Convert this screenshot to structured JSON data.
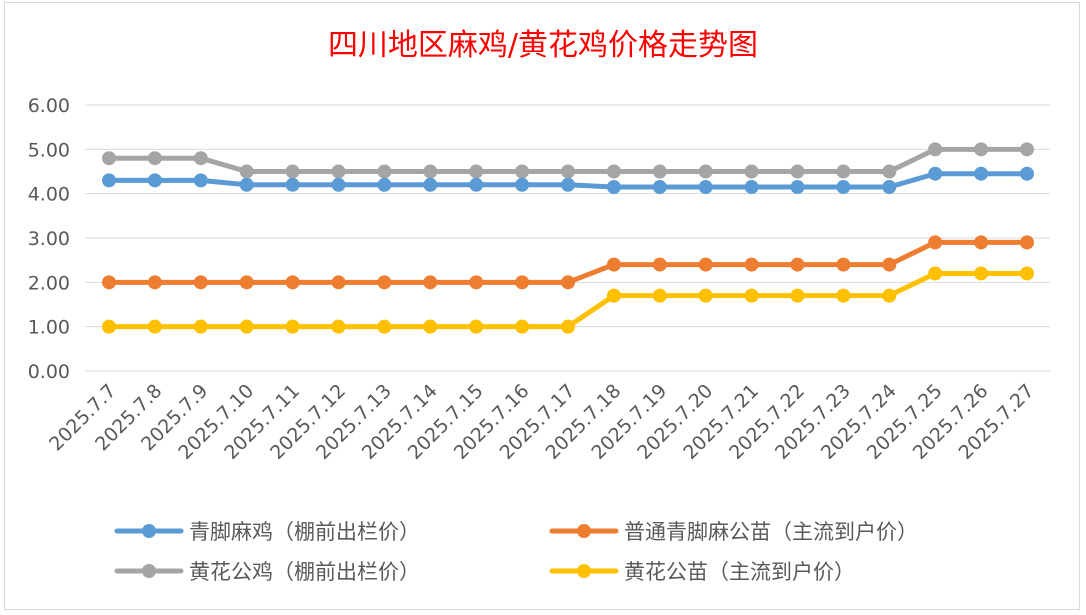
{
  "chart_data": {
    "type": "line",
    "title": "四川地区麻鸡/黄花鸡价格走势图",
    "xlabel": "",
    "ylabel": "",
    "ylim": [
      0,
      6
    ],
    "y_ticks": [
      "0.00",
      "1.00",
      "2.00",
      "3.00",
      "4.00",
      "5.00",
      "6.00"
    ],
    "grid": true,
    "legend_position": "bottom",
    "categories": [
      "2025.7.7",
      "2025.7.8",
      "2025.7.9",
      "2025.7.10",
      "2025.7.11",
      "2025.7.12",
      "2025.7.13",
      "2025.7.14",
      "2025.7.15",
      "2025.7.16",
      "2025.7.17",
      "2025.7.18",
      "2025.7.19",
      "2025.7.20",
      "2025.7.21",
      "2025.7.22",
      "2025.7.23",
      "2025.7.24",
      "2025.7.25",
      "2025.7.26",
      "2025.7.27"
    ],
    "series": [
      {
        "name": "青脚麻鸡（棚前出栏价）",
        "color": "#5b9bd5",
        "values": [
          4.3,
          4.3,
          4.3,
          4.2,
          4.2,
          4.2,
          4.2,
          4.2,
          4.2,
          4.2,
          4.2,
          4.15,
          4.15,
          4.15,
          4.15,
          4.15,
          4.15,
          4.15,
          4.45,
          4.45,
          4.45
        ]
      },
      {
        "name": "普通青脚麻公苗（主流到户价）",
        "color": "#ed7d31",
        "values": [
          2.0,
          2.0,
          2.0,
          2.0,
          2.0,
          2.0,
          2.0,
          2.0,
          2.0,
          2.0,
          2.0,
          2.4,
          2.4,
          2.4,
          2.4,
          2.4,
          2.4,
          2.4,
          2.9,
          2.9,
          2.9
        ]
      },
      {
        "name": "黄花公鸡（棚前出栏价）",
        "color": "#a5a5a5",
        "values": [
          4.8,
          4.8,
          4.8,
          4.5,
          4.5,
          4.5,
          4.5,
          4.5,
          4.5,
          4.5,
          4.5,
          4.5,
          4.5,
          4.5,
          4.5,
          4.5,
          4.5,
          4.5,
          5.0,
          5.0,
          5.0
        ]
      },
      {
        "name": "黄花公苗（主流到户价）",
        "color": "#ffc000",
        "values": [
          1.0,
          1.0,
          1.0,
          1.0,
          1.0,
          1.0,
          1.0,
          1.0,
          1.0,
          1.0,
          1.0,
          1.7,
          1.7,
          1.7,
          1.7,
          1.7,
          1.7,
          1.7,
          2.2,
          2.2,
          2.2
        ]
      }
    ]
  }
}
